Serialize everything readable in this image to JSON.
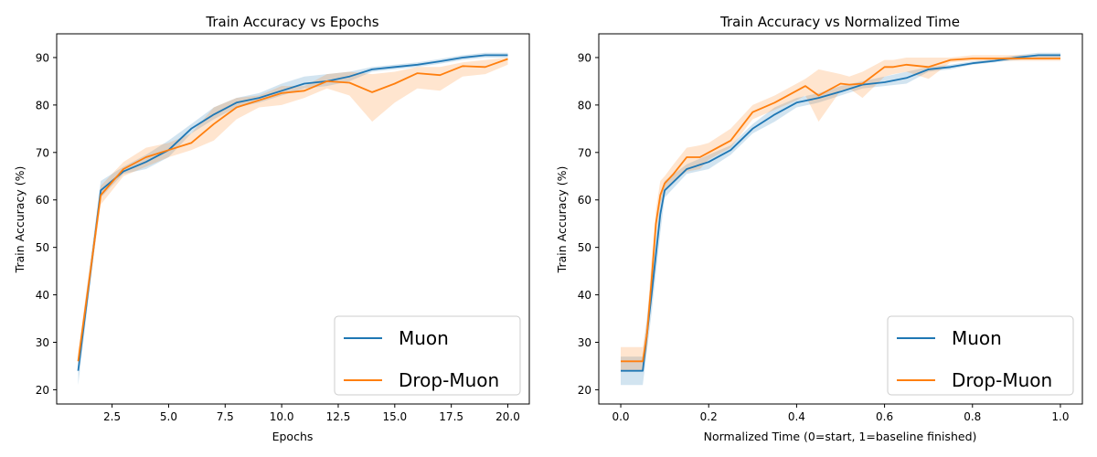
{
  "colors": {
    "muon": "#1f77b4",
    "drop_muon": "#ff7f0e",
    "muon_band": "#1f77b4",
    "drop_band": "#ff7f0e"
  },
  "chart_data": [
    {
      "type": "line",
      "title": "Train Accuracy vs Epochs",
      "xlabel": "Epochs",
      "ylabel": "Train Accuracy (%)",
      "xlim": [
        0.05,
        20.95
      ],
      "ylim": [
        17,
        95
      ],
      "xticks": [
        2.5,
        5.0,
        7.5,
        10.0,
        12.5,
        15.0,
        17.5,
        20.0
      ],
      "xtick_labels": [
        "2.5",
        "5.0",
        "7.5",
        "10.0",
        "12.5",
        "15.0",
        "17.5",
        "20.0"
      ],
      "yticks": [
        20,
        30,
        40,
        50,
        60,
        70,
        80,
        90
      ],
      "ytick_labels": [
        "20",
        "30",
        "40",
        "50",
        "60",
        "70",
        "80",
        "90"
      ],
      "legend_position": "bottom-right",
      "series": [
        {
          "name": "Muon",
          "color": "#1f77b4",
          "x": [
            1,
            2,
            3,
            4,
            5,
            6,
            7,
            8,
            9,
            10,
            11,
            12,
            13,
            14,
            15,
            16,
            17,
            18,
            19,
            20
          ],
          "values": [
            24,
            62,
            66,
            68,
            70.5,
            75,
            78,
            80.5,
            81.5,
            83,
            84.5,
            85,
            86,
            87.5,
            88,
            88.5,
            89.2,
            90,
            90.5,
            90.5
          ],
          "lower": [
            21,
            60.5,
            65.5,
            66.5,
            69,
            74,
            77,
            79.5,
            80.5,
            82,
            83.5,
            84,
            85,
            87,
            87.5,
            88,
            88.7,
            89.5,
            90,
            90
          ],
          "upper": [
            27,
            64,
            67,
            69.5,
            72.5,
            76,
            79.5,
            81.5,
            82.5,
            84.5,
            86,
            86.5,
            87,
            88,
            88.5,
            89,
            89.7,
            90.5,
            91,
            91
          ]
        },
        {
          "name": "Drop-Muon",
          "color": "#ff7f0e",
          "x": [
            1,
            2,
            3,
            4,
            5,
            6,
            7,
            8,
            9,
            10,
            11,
            12,
            13,
            14,
            15,
            16,
            17,
            18,
            19,
            20
          ],
          "values": [
            26,
            61,
            66.5,
            69,
            70.5,
            72,
            76,
            79.5,
            81,
            82.5,
            83,
            85,
            84.7,
            82.7,
            84.5,
            86.7,
            86.3,
            88.2,
            88,
            89.7
          ],
          "lower": [
            24,
            59,
            65,
            67,
            69,
            70.5,
            72.5,
            77,
            79.5,
            80,
            81.5,
            83.5,
            82,
            76.5,
            80.5,
            83.5,
            83,
            86,
            86.5,
            88.5
          ],
          "upper": [
            28,
            63,
            68,
            71,
            72,
            74,
            79.5,
            81.5,
            82,
            84,
            84,
            86.5,
            87,
            86.5,
            87,
            88,
            88,
            89,
            89.5,
            90
          ]
        }
      ]
    },
    {
      "type": "line",
      "title": "Train Accuracy vs Normalized Time",
      "xlabel": "Normalized Time (0=start, 1=baseline finished)",
      "ylabel": "Train Accuracy (%)",
      "xlim": [
        -0.05,
        1.05
      ],
      "ylim": [
        17,
        95
      ],
      "xticks": [
        0.0,
        0.2,
        0.4,
        0.6,
        0.8,
        1.0
      ],
      "xtick_labels": [
        "0.0",
        "0.2",
        "0.4",
        "0.6",
        "0.8",
        "1.0"
      ],
      "yticks": [
        20,
        30,
        40,
        50,
        60,
        70,
        80,
        90
      ],
      "ytick_labels": [
        "20",
        "30",
        "40",
        "50",
        "60",
        "70",
        "80",
        "90"
      ],
      "legend_position": "bottom-right",
      "series": [
        {
          "name": "Muon",
          "color": "#1f77b4",
          "x": [
            0,
            0.05,
            0.07,
            0.09,
            0.1,
            0.15,
            0.2,
            0.25,
            0.3,
            0.35,
            0.4,
            0.45,
            0.5,
            0.55,
            0.6,
            0.65,
            0.7,
            0.75,
            0.8,
            0.85,
            0.9,
            0.95,
            1.0
          ],
          "values": [
            24,
            24,
            40,
            57,
            62,
            66.5,
            68,
            70.5,
            75,
            78,
            80.5,
            81.5,
            82.8,
            84.3,
            84.8,
            85.7,
            87.5,
            88,
            88.8,
            89.3,
            90,
            90.5,
            90.5
          ],
          "lower": [
            21,
            21,
            36,
            53,
            60.5,
            65.5,
            66.5,
            69.5,
            74,
            76.5,
            79.5,
            80.5,
            82,
            83.5,
            84,
            84.5,
            87,
            87.5,
            88.5,
            89,
            89.5,
            90,
            90
          ],
          "upper": [
            27,
            27,
            44,
            60,
            64,
            67.5,
            69.5,
            71.5,
            76,
            79.5,
            81.5,
            82.5,
            84,
            85,
            86,
            87,
            88,
            88.5,
            89.2,
            89.7,
            90.5,
            91,
            91
          ]
        },
        {
          "name": "Drop-Muon",
          "color": "#ff7f0e",
          "x": [
            0,
            0.05,
            0.06,
            0.07,
            0.08,
            0.09,
            0.1,
            0.12,
            0.15,
            0.18,
            0.2,
            0.25,
            0.3,
            0.35,
            0.4,
            0.42,
            0.45,
            0.5,
            0.52,
            0.55,
            0.6,
            0.62,
            0.65,
            0.7,
            0.75,
            0.8,
            0.9,
            1.0
          ],
          "values": [
            26,
            26,
            32,
            43,
            55,
            61,
            63.5,
            65.5,
            69,
            69,
            70,
            72.5,
            78.5,
            80.5,
            83,
            84,
            82,
            84.5,
            84.3,
            84.5,
            88,
            88,
            88.5,
            88,
            89.5,
            89.8,
            89.8,
            89.8
          ],
          "lower": [
            24,
            24,
            29,
            40,
            52,
            59,
            62,
            64,
            66,
            66.5,
            68.5,
            71,
            77,
            79,
            81,
            82,
            76.5,
            83,
            83.5,
            81.5,
            86,
            86.5,
            87,
            85.5,
            89,
            89.3,
            89.3,
            89.3
          ],
          "upper": [
            29,
            29,
            35,
            47,
            58,
            64,
            65,
            67.5,
            71,
            71.5,
            72,
            75,
            80,
            82,
            84.5,
            85.5,
            87.5,
            86.5,
            86,
            87,
            89.5,
            89.5,
            90,
            90,
            90,
            90.5,
            90.5,
            90.5
          ]
        }
      ]
    }
  ]
}
